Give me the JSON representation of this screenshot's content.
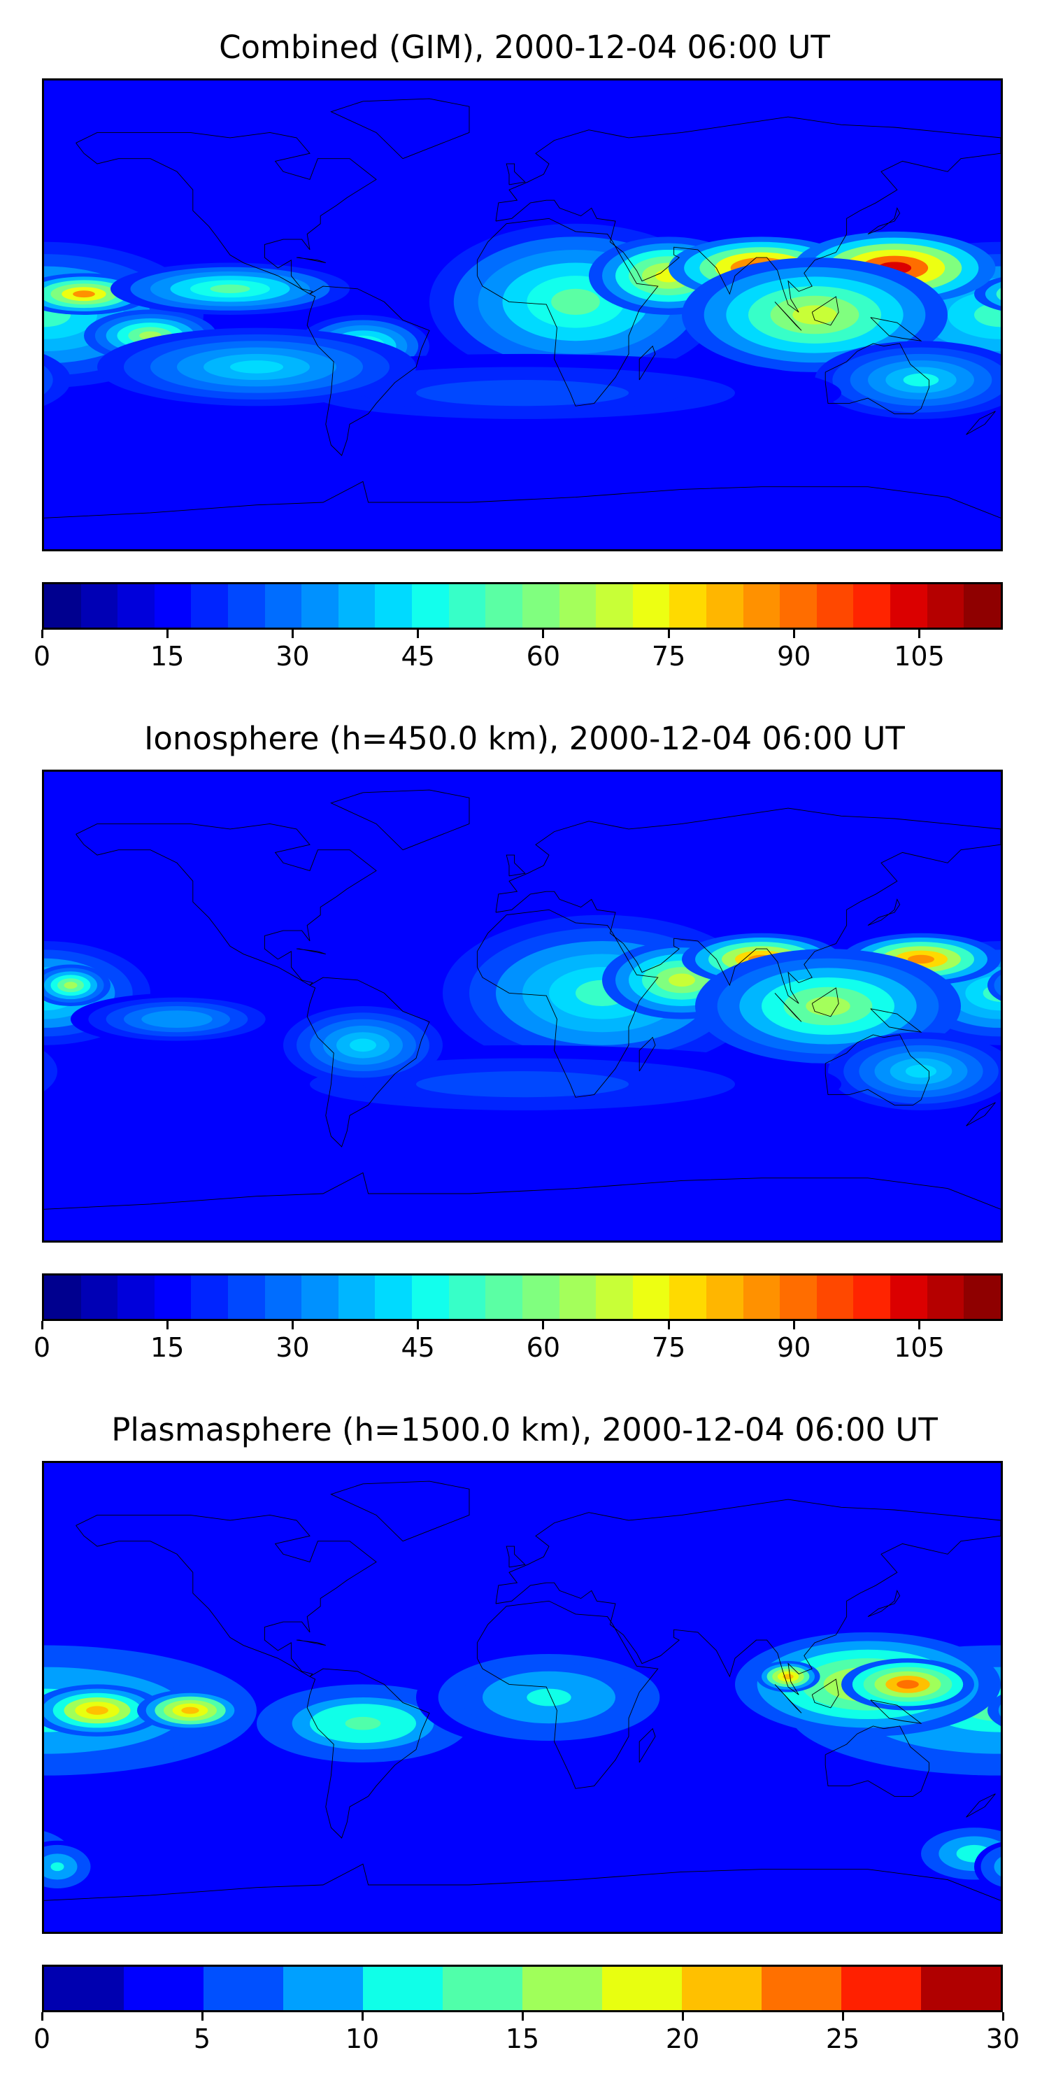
{
  "panels": [
    {
      "title": "Combined (GIM), 2000-12-04 06:00 UT",
      "vmax": 115,
      "ticks": [
        0,
        15,
        30,
        45,
        60,
        75,
        90,
        105
      ],
      "colors": [
        "#00008f",
        "#0000b5",
        "#0000db",
        "#0000ff",
        "#0024ff",
        "#0048ff",
        "#006dff",
        "#0091ff",
        "#00b6ff",
        "#00daff",
        "#12ffed",
        "#37ffc8",
        "#5bffa4",
        "#80ff7f",
        "#a4ff5b",
        "#c8ff37",
        "#edff12",
        "#ffda00",
        "#ffb600",
        "#ff9100",
        "#ff6d00",
        "#ff4800",
        "#ff2400",
        "#db0000",
        "#b50000",
        "#8f0000"
      ],
      "blobs": [
        {
          "lon": -180,
          "lat": 0,
          "rx": 60,
          "ry": 28,
          "v": 50
        },
        {
          "lon": -165,
          "lat": 8,
          "rx": 25,
          "ry": 8,
          "v": 85
        },
        {
          "lon": -140,
          "lat": -8,
          "rx": 25,
          "ry": 10,
          "v": 65
        },
        {
          "lon": -110,
          "lat": 10,
          "rx": 45,
          "ry": 10,
          "v": 55
        },
        {
          "lon": -60,
          "lat": -12,
          "rx": 25,
          "ry": 12,
          "v": 55
        },
        {
          "lon": 20,
          "lat": 5,
          "rx": 55,
          "ry": 30,
          "v": 55
        },
        {
          "lon": 55,
          "lat": 15,
          "rx": 30,
          "ry": 15,
          "v": 75
        },
        {
          "lon": 90,
          "lat": 18,
          "rx": 35,
          "ry": 12,
          "v": 100
        },
        {
          "lon": 140,
          "lat": 18,
          "rx": 38,
          "ry": 14,
          "v": 105
        },
        {
          "lon": 110,
          "lat": 0,
          "rx": 50,
          "ry": 22,
          "v": 70
        },
        {
          "lon": 150,
          "lat": -25,
          "rx": 40,
          "ry": 15,
          "v": 45
        },
        {
          "lon": 0,
          "lat": -30,
          "rx": 120,
          "ry": 15,
          "v": 25
        },
        {
          "lon": -100,
          "lat": -20,
          "rx": 60,
          "ry": 15,
          "v": 40
        }
      ]
    },
    {
      "title": "Ionosphere  (h=450.0 km), 2000-12-04 06:00 UT",
      "vmax": 115,
      "ticks": [
        0,
        15,
        30,
        45,
        60,
        75,
        90,
        105
      ],
      "colors": [
        "#00008f",
        "#0000b5",
        "#0000db",
        "#0000ff",
        "#0024ff",
        "#0048ff",
        "#006dff",
        "#0091ff",
        "#00b6ff",
        "#00daff",
        "#12ffed",
        "#37ffc8",
        "#5bffa4",
        "#80ff7f",
        "#a4ff5b",
        "#c8ff37",
        "#edff12",
        "#ffda00",
        "#ffb600",
        "#ff9100",
        "#ff6d00",
        "#ff4800",
        "#ff2400",
        "#db0000",
        "#b50000",
        "#8f0000"
      ],
      "blobs": [
        {
          "lon": -180,
          "lat": 5,
          "rx": 40,
          "ry": 20,
          "v": 50
        },
        {
          "lon": -170,
          "lat": 8,
          "rx": 15,
          "ry": 8,
          "v": 65
        },
        {
          "lon": -130,
          "lat": -5,
          "rx": 40,
          "ry": 10,
          "v": 35
        },
        {
          "lon": 30,
          "lat": 5,
          "rx": 60,
          "ry": 30,
          "v": 50
        },
        {
          "lon": 60,
          "lat": 10,
          "rx": 30,
          "ry": 15,
          "v": 70
        },
        {
          "lon": 90,
          "lat": 18,
          "rx": 30,
          "ry": 10,
          "v": 88
        },
        {
          "lon": 150,
          "lat": 18,
          "rx": 30,
          "ry": 10,
          "v": 88
        },
        {
          "lon": 115,
          "lat": 0,
          "rx": 50,
          "ry": 22,
          "v": 65
        },
        {
          "lon": 150,
          "lat": -25,
          "rx": 35,
          "ry": 15,
          "v": 40
        },
        {
          "lon": 0,
          "lat": -30,
          "rx": 120,
          "ry": 15,
          "v": 25
        },
        {
          "lon": -60,
          "lat": -15,
          "rx": 30,
          "ry": 15,
          "v": 40
        }
      ]
    },
    {
      "title": "Plasmasphere (h=1500.0 km), 2000-12-04 06:00 UT",
      "vmax": 30,
      "ticks": [
        0,
        5,
        10,
        15,
        20,
        25,
        30
      ],
      "colors": [
        "#0000b0",
        "#0000ff",
        "#0050ff",
        "#00a0ff",
        "#10ffe8",
        "#50ffaa",
        "#a0ff5a",
        "#e8ff10",
        "#ffc000",
        "#ff7000",
        "#ff2000",
        "#b00000"
      ],
      "blobs": [
        {
          "lon": -180,
          "lat": -5,
          "rx": 80,
          "ry": 25,
          "v": 13
        },
        {
          "lon": -160,
          "lat": -5,
          "rx": 25,
          "ry": 10,
          "v": 21
        },
        {
          "lon": -125,
          "lat": -5,
          "rx": 20,
          "ry": 8,
          "v": 22
        },
        {
          "lon": -60,
          "lat": -10,
          "rx": 40,
          "ry": 15,
          "v": 14
        },
        {
          "lon": 10,
          "lat": 0,
          "rx": 50,
          "ry": 20,
          "v": 10
        },
        {
          "lon": 130,
          "lat": 5,
          "rx": 50,
          "ry": 20,
          "v": 18
        },
        {
          "lon": 145,
          "lat": 5,
          "rx": 25,
          "ry": 10,
          "v": 24
        },
        {
          "lon": 100,
          "lat": 8,
          "rx": 12,
          "ry": 6,
          "v": 22
        },
        {
          "lon": 170,
          "lat": -60,
          "rx": 20,
          "ry": 10,
          "v": 12
        },
        {
          "lon": -175,
          "lat": -65,
          "rx": 15,
          "ry": 10,
          "v": 11
        }
      ]
    }
  ]
}
